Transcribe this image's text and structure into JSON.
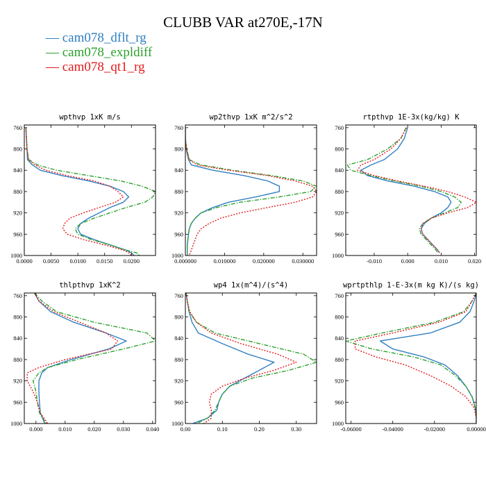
{
  "title": "CLUBB VAR at270E,-17N",
  "legend": [
    {
      "label": "cam078_dflt_rg",
      "color": "#2f7fc1",
      "dash": "solid"
    },
    {
      "label": "cam078_expldiff",
      "color": "#2ca02c",
      "dash": "dashdot"
    },
    {
      "label": "cam078_qt1_rg",
      "color": "#e31a1c",
      "dash": "dotted"
    }
  ],
  "chart_data": [
    {
      "type": "line",
      "title": "wpthvp  1xK m/s",
      "x_ticks": [
        "0.0000",
        "0.0050",
        "0.0100",
        "0.0150",
        "0.0200"
      ],
      "x_tick_values": [
        0,
        0.005,
        0.01,
        0.015,
        0.02
      ],
      "xlim": [
        0,
        0.0245
      ],
      "y_ticks": [
        "760",
        "800",
        "840",
        "880",
        "920",
        "960",
        "1000"
      ],
      "ylim": [
        755,
        1000
      ],
      "y_inverted": true,
      "y": [
        760,
        780,
        800,
        820,
        830,
        840,
        850,
        860,
        870,
        880,
        890,
        900,
        910,
        920,
        930,
        940,
        950,
        960,
        970,
        980,
        990,
        995,
        1000
      ],
      "series": [
        {
          "name": "cam078_dflt_rg",
          "x": [
            0.0003,
            0.0004,
            0.0005,
            0.0006,
            0.0015,
            0.003,
            0.007,
            0.012,
            0.016,
            0.0185,
            0.0195,
            0.0185,
            0.016,
            0.014,
            0.012,
            0.0105,
            0.01,
            0.0105,
            0.013,
            0.016,
            0.019,
            0.02,
            0.0205
          ]
        },
        {
          "name": "cam078_expldiff",
          "x": [
            0.0003,
            0.0004,
            0.0005,
            0.0008,
            0.0025,
            0.006,
            0.012,
            0.018,
            0.022,
            0.0245,
            0.024,
            0.0225,
            0.019,
            0.016,
            0.013,
            0.0105,
            0.0095,
            0.01,
            0.0125,
            0.016,
            0.019,
            0.021,
            0.0215
          ]
        },
        {
          "name": "cam078_qt1_rg",
          "x": [
            0.0003,
            0.0004,
            0.0005,
            0.0008,
            0.002,
            0.004,
            0.008,
            0.013,
            0.016,
            0.0175,
            0.0185,
            0.017,
            0.014,
            0.011,
            0.0085,
            0.0075,
            0.0072,
            0.008,
            0.011,
            0.015,
            0.0185,
            0.0195,
            0.02
          ]
        }
      ]
    },
    {
      "type": "line",
      "title": "wp2thvp  1xK m^2/s^2",
      "x_ticks": [
        "0.000000",
        "0.010000",
        "0.020000",
        "0.030000"
      ],
      "x_tick_values": [
        0,
        0.01,
        0.02,
        0.03
      ],
      "xlim": [
        0,
        0.0335
      ],
      "y_ticks": [
        "760",
        "800",
        "840",
        "880",
        "920",
        "960",
        "1000"
      ],
      "ylim": [
        755,
        1000
      ],
      "y_inverted": true,
      "y": [
        760,
        780,
        800,
        820,
        830,
        840,
        850,
        860,
        870,
        880,
        890,
        900,
        910,
        920,
        930,
        940,
        950,
        960,
        980,
        1000
      ],
      "series": [
        {
          "name": "cam078_dflt_rg",
          "x": [
            0.0,
            0.0,
            0.0002,
            0.0008,
            0.0015,
            0.007,
            0.015,
            0.021,
            0.024,
            0.024,
            0.018,
            0.011,
            0.007,
            0.004,
            0.0025,
            0.0015,
            0.001,
            0.0008,
            0.0005,
            0.0005
          ]
        },
        {
          "name": "cam078_expldiff",
          "x": [
            0.0,
            0.0,
            0.0003,
            0.001,
            0.004,
            0.012,
            0.022,
            0.03,
            0.0335,
            0.032,
            0.024,
            0.014,
            0.008,
            0.004,
            0.0025,
            0.0015,
            0.001,
            0.0008,
            0.0005,
            0.0005
          ]
        },
        {
          "name": "cam078_qt1_rg",
          "x": [
            0.0,
            0.0,
            0.0003,
            0.001,
            0.003,
            0.011,
            0.021,
            0.028,
            0.0325,
            0.0335,
            0.0325,
            0.028,
            0.021,
            0.014,
            0.009,
            0.006,
            0.004,
            0.003,
            0.002,
            0.001
          ]
        }
      ]
    },
    {
      "type": "line",
      "title": "rtpthvp  1E-3x(kg/kg) K",
      "x_ticks": [
        "-0.010",
        "0.000",
        "0.010",
        "0.020"
      ],
      "x_tick_values": [
        -0.01,
        0,
        0.01,
        0.02
      ],
      "xlim": [
        -0.0185,
        0.0205
      ],
      "y_ticks": [
        "760",
        "800",
        "840",
        "880",
        "920",
        "960",
        "1000"
      ],
      "ylim": [
        755,
        1000
      ],
      "y_inverted": true,
      "y": [
        760,
        780,
        800,
        820,
        830,
        840,
        850,
        860,
        870,
        880,
        890,
        900,
        910,
        920,
        930,
        940,
        950,
        960,
        970,
        980,
        990,
        995
      ],
      "series": [
        {
          "name": "cam078_dflt_rg",
          "x": [
            0.0,
            -0.001,
            -0.003,
            -0.007,
            -0.011,
            -0.014,
            -0.012,
            -0.006,
            0.002,
            0.008,
            0.012,
            0.013,
            0.012,
            0.01,
            0.007,
            0.005,
            0.004,
            0.0045,
            0.006,
            0.0075,
            0.009,
            0.0095
          ]
        },
        {
          "name": "cam078_expldiff",
          "x": [
            -0.0005,
            -0.002,
            -0.006,
            -0.012,
            -0.018,
            -0.017,
            -0.011,
            -0.004,
            0.004,
            0.01,
            0.014,
            0.016,
            0.015,
            0.011,
            0.007,
            0.0045,
            0.0035,
            0.004,
            0.0055,
            0.007,
            0.0085,
            0.009
          ]
        },
        {
          "name": "cam078_qt1_rg",
          "x": [
            -0.0003,
            -0.002,
            -0.005,
            -0.01,
            -0.014,
            -0.015,
            -0.01,
            -0.003,
            0.005,
            0.012,
            0.017,
            0.0205,
            0.018,
            0.012,
            0.007,
            0.0045,
            0.004,
            0.0045,
            0.006,
            0.0075,
            0.009,
            0.0095
          ]
        }
      ]
    },
    {
      "type": "line",
      "title": "thlpthvp  1xK^2",
      "x_ticks": [
        "0.000",
        "0.010",
        "0.020",
        "0.030",
        "0.040"
      ],
      "x_tick_values": [
        0,
        0.01,
        0.02,
        0.03,
        0.04
      ],
      "xlim": [
        -0.004,
        0.041
      ],
      "y_ticks": [
        "760",
        "800",
        "840",
        "880",
        "920",
        "960",
        "1000"
      ],
      "ylim": [
        755,
        1000
      ],
      "y_inverted": true,
      "y": [
        755,
        770,
        790,
        810,
        830,
        845,
        860,
        880,
        895,
        905,
        920,
        940,
        960,
        980,
        1000
      ],
      "series": [
        {
          "name": "cam078_dflt_rg",
          "x": [
            -0.0005,
            0.001,
            0.005,
            0.013,
            0.024,
            0.031,
            0.025,
            0.012,
            0.004,
            0.002,
            0.001,
            0.001,
            0.0012,
            0.0015,
            0.003
          ]
        },
        {
          "name": "cam078_expldiff",
          "x": [
            -0.0005,
            0.002,
            0.007,
            0.02,
            0.038,
            0.041,
            0.03,
            0.014,
            0.004,
            0.001,
            -0.001,
            0.0,
            0.0005,
            0.0012,
            0.0035
          ]
        },
        {
          "name": "cam078_qt1_rg",
          "x": [
            -0.0005,
            0.001,
            0.006,
            0.015,
            0.024,
            0.028,
            0.026,
            0.01,
            0.001,
            -0.003,
            -0.003,
            -0.001,
            0.0005,
            0.0015,
            0.004
          ]
        }
      ]
    },
    {
      "type": "line",
      "title": "wp4  1x(m^4)/(s^4)",
      "x_ticks": [
        "0.00",
        "0.10",
        "0.20",
        "0.30"
      ],
      "x_tick_values": [
        0,
        0.1,
        0.2,
        0.3
      ],
      "xlim": [
        0,
        0.355
      ],
      "y_ticks": [
        "760",
        "800",
        "840",
        "880",
        "920",
        "960",
        "1000"
      ],
      "ylim": [
        755,
        1000
      ],
      "y_inverted": true,
      "y": [
        755,
        770,
        790,
        810,
        830,
        850,
        870,
        885,
        900,
        915,
        930,
        945,
        960,
        975,
        990,
        1000
      ],
      "series": [
        {
          "name": "cam078_dflt_rg",
          "x": [
            0.002,
            0.005,
            0.01,
            0.018,
            0.035,
            0.1,
            0.17,
            0.24,
            0.2,
            0.16,
            0.12,
            0.1,
            0.09,
            0.085,
            0.06,
            0.02
          ]
        },
        {
          "name": "cam078_expldiff",
          "x": [
            0.002,
            0.005,
            0.01,
            0.03,
            0.08,
            0.2,
            0.32,
            0.355,
            0.28,
            0.18,
            0.12,
            0.1,
            0.09,
            0.08,
            0.06,
            0.03
          ]
        },
        {
          "name": "cam078_qt1_rg",
          "x": [
            0.002,
            0.005,
            0.012,
            0.03,
            0.07,
            0.15,
            0.25,
            0.3,
            0.24,
            0.16,
            0.1,
            0.07,
            0.065,
            0.07,
            0.07,
            0.05
          ]
        }
      ]
    },
    {
      "type": "line",
      "title": "wprtpthlp  1-E-3x(m kg K)/(s kg)",
      "x_ticks": [
        "-0.06000",
        "-0.04000",
        "-0.02000",
        "0.00000"
      ],
      "x_tick_values": [
        -0.06,
        -0.04,
        -0.02,
        0
      ],
      "xlim": [
        -0.0625,
        0.0
      ],
      "y_ticks": [
        "760",
        "800",
        "840",
        "880",
        "920",
        "960",
        "1000"
      ],
      "ylim": [
        755,
        1000
      ],
      "y_inverted": true,
      "y": [
        755,
        770,
        790,
        810,
        830,
        845,
        860,
        875,
        890,
        910,
        930,
        950,
        970,
        990,
        1000
      ],
      "series": [
        {
          "name": "cam078_dflt_rg",
          "x": [
            0.0,
            -0.001,
            -0.003,
            -0.008,
            -0.022,
            -0.046,
            -0.04,
            -0.025,
            -0.015,
            -0.009,
            -0.005,
            -0.002,
            -0.0005,
            0.0,
            0.0
          ]
        },
        {
          "name": "cam078_expldiff",
          "x": [
            0.0,
            -0.002,
            -0.006,
            -0.02,
            -0.045,
            -0.0625,
            -0.05,
            -0.03,
            -0.017,
            -0.01,
            -0.005,
            -0.002,
            -0.0005,
            0.0,
            0.0
          ]
        },
        {
          "name": "cam078_qt1_rg",
          "x": [
            0.0,
            -0.002,
            -0.005,
            -0.018,
            -0.04,
            -0.058,
            -0.058,
            -0.048,
            -0.034,
            -0.022,
            -0.012,
            -0.005,
            -0.001,
            0.0,
            0.0
          ]
        }
      ]
    }
  ]
}
